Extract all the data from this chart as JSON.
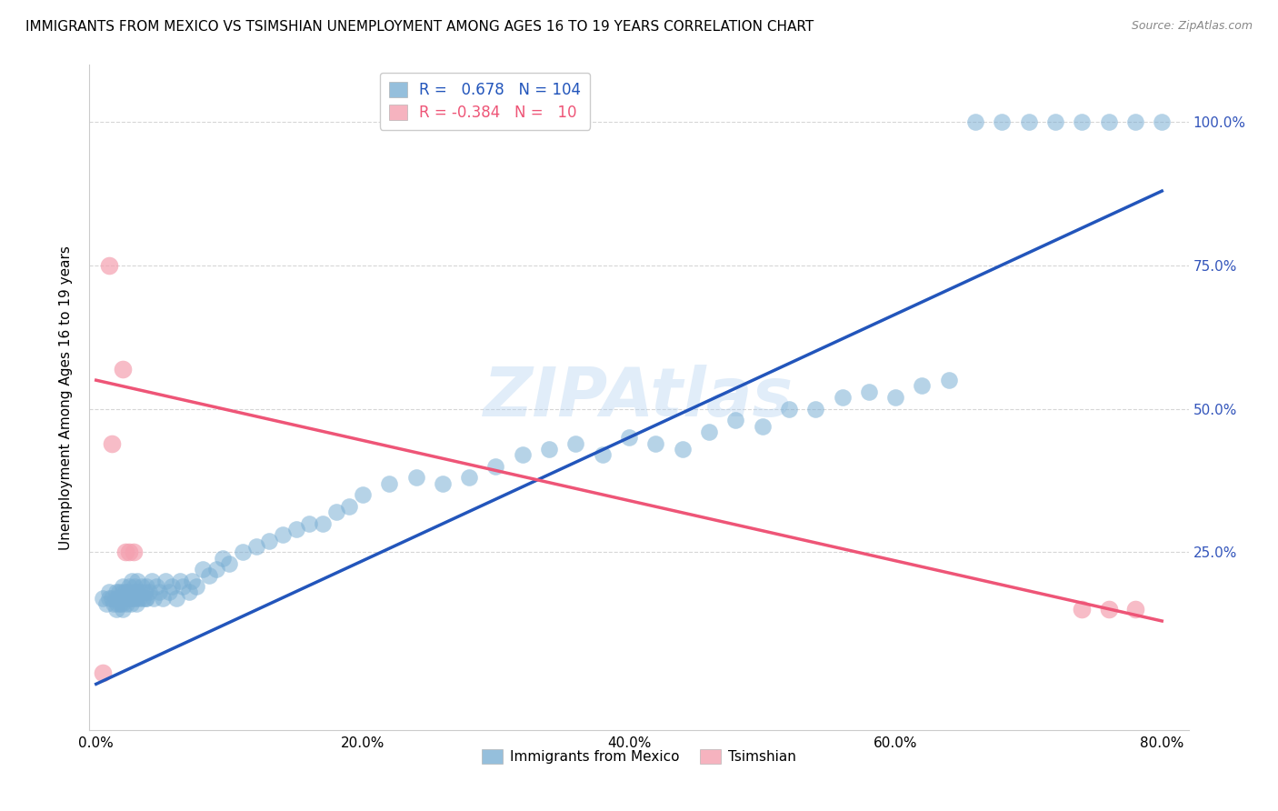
{
  "title": "IMMIGRANTS FROM MEXICO VS TSIMSHIAN UNEMPLOYMENT AMONG AGES 16 TO 19 YEARS CORRELATION CHART",
  "source": "Source: ZipAtlas.com",
  "ylabel": "Unemployment Among Ages 16 to 19 years",
  "x_tick_labels": [
    "0.0%",
    "",
    "20.0%",
    "",
    "40.0%",
    "",
    "60.0%",
    "",
    "80.0%"
  ],
  "x_tick_positions": [
    0.0,
    0.1,
    0.2,
    0.3,
    0.4,
    0.5,
    0.6,
    0.7,
    0.8
  ],
  "y_tick_labels": [
    "100.0%",
    "75.0%",
    "50.0%",
    "25.0%"
  ],
  "y_tick_positions": [
    1.0,
    0.75,
    0.5,
    0.25
  ],
  "xlim": [
    -0.005,
    0.82
  ],
  "ylim": [
    -0.06,
    1.1
  ],
  "blue_color": "#7BAFD4",
  "pink_color": "#F4A0B0",
  "blue_line_color": "#2255BB",
  "pink_line_color": "#EE5577",
  "right_axis_color": "#3355BB",
  "legend_R1": "0.678",
  "legend_N1": "104",
  "legend_R2": "-0.384",
  "legend_N2": "10",
  "legend_label1": "Immigrants from Mexico",
  "legend_label2": "Tsimshian",
  "blue_scatter_x": [
    0.005,
    0.008,
    0.01,
    0.01,
    0.012,
    0.013,
    0.015,
    0.015,
    0.015,
    0.016,
    0.017,
    0.017,
    0.018,
    0.018,
    0.019,
    0.02,
    0.02,
    0.02,
    0.02,
    0.022,
    0.022,
    0.023,
    0.023,
    0.024,
    0.025,
    0.025,
    0.026,
    0.027,
    0.027,
    0.028,
    0.028,
    0.029,
    0.03,
    0.03,
    0.031,
    0.031,
    0.032,
    0.033,
    0.034,
    0.035,
    0.036,
    0.037,
    0.038,
    0.038,
    0.04,
    0.042,
    0.043,
    0.045,
    0.047,
    0.05,
    0.052,
    0.055,
    0.057,
    0.06,
    0.063,
    0.065,
    0.07,
    0.072,
    0.075,
    0.08,
    0.085,
    0.09,
    0.095,
    0.1,
    0.11,
    0.12,
    0.13,
    0.14,
    0.15,
    0.16,
    0.17,
    0.18,
    0.19,
    0.2,
    0.22,
    0.24,
    0.26,
    0.28,
    0.3,
    0.32,
    0.34,
    0.36,
    0.38,
    0.4,
    0.42,
    0.44,
    0.46,
    0.48,
    0.5,
    0.52,
    0.54,
    0.56,
    0.58,
    0.6,
    0.62,
    0.64,
    0.66,
    0.68,
    0.7,
    0.72,
    0.74,
    0.76,
    0.78,
    0.8
  ],
  "blue_scatter_y": [
    0.17,
    0.16,
    0.17,
    0.18,
    0.17,
    0.16,
    0.15,
    0.17,
    0.18,
    0.16,
    0.17,
    0.18,
    0.16,
    0.17,
    0.16,
    0.15,
    0.17,
    0.18,
    0.19,
    0.17,
    0.18,
    0.16,
    0.17,
    0.18,
    0.17,
    0.19,
    0.16,
    0.17,
    0.2,
    0.17,
    0.18,
    0.19,
    0.16,
    0.17,
    0.18,
    0.2,
    0.17,
    0.18,
    0.19,
    0.17,
    0.18,
    0.17,
    0.17,
    0.19,
    0.18,
    0.2,
    0.17,
    0.19,
    0.18,
    0.17,
    0.2,
    0.18,
    0.19,
    0.17,
    0.2,
    0.19,
    0.18,
    0.2,
    0.19,
    0.22,
    0.21,
    0.22,
    0.24,
    0.23,
    0.25,
    0.26,
    0.27,
    0.28,
    0.29,
    0.3,
    0.3,
    0.32,
    0.33,
    0.35,
    0.37,
    0.38,
    0.37,
    0.38,
    0.4,
    0.42,
    0.43,
    0.44,
    0.42,
    0.45,
    0.44,
    0.43,
    0.46,
    0.48,
    0.47,
    0.5,
    0.5,
    0.52,
    0.53,
    0.52,
    0.54,
    0.55,
    1.0,
    1.0,
    1.0,
    1.0,
    1.0,
    1.0,
    1.0,
    1.0
  ],
  "pink_scatter_x": [
    0.005,
    0.01,
    0.012,
    0.02,
    0.022,
    0.025,
    0.028,
    0.74,
    0.76,
    0.78
  ],
  "pink_scatter_y": [
    0.04,
    0.75,
    0.44,
    0.57,
    0.25,
    0.25,
    0.25,
    0.15,
    0.15,
    0.15
  ],
  "blue_line_x": [
    0.0,
    0.8
  ],
  "blue_line_y": [
    0.02,
    0.88
  ],
  "pink_line_x": [
    0.0,
    0.8
  ],
  "pink_line_y": [
    0.55,
    0.13
  ]
}
